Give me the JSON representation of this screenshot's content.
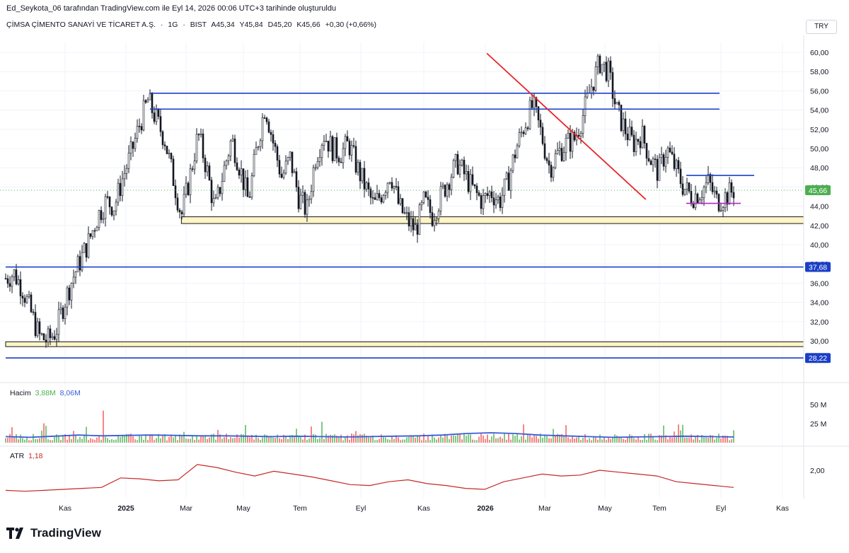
{
  "header": {
    "attribution": "Ed_Seykota_06 tarafından TradingView.com ile Eyl 14, 2026 00:06 UTC+3 tarihinde oluşturuldu"
  },
  "symbol": {
    "name": "ÇİMSA ÇİMENTO SANAYİ VE TİCARET A.Ş.",
    "interval": "1G",
    "exchange": "BIST",
    "open": "A45,34",
    "high": "Y45,84",
    "low": "D45,20",
    "close": "K45,66",
    "change": "+0,30 (+0,66%)"
  },
  "currency": "TRY",
  "chart_data": {
    "type": "candlestick",
    "x_ticks": [
      "Kas",
      "2025",
      "Mar",
      "May",
      "Tem",
      "Eyl",
      "Kas",
      "2026",
      "Mar",
      "May",
      "Tem",
      "Eyl",
      "Kas"
    ],
    "y_ticks": [
      "60,00",
      "58,00",
      "56,00",
      "54,00",
      "52,00",
      "50,00",
      "48,00",
      "46,00",
      "44,00",
      "42,00",
      "40,00",
      "38,00",
      "36,00",
      "34,00",
      "32,00",
      "30,00"
    ],
    "ylim": [
      28,
      61
    ],
    "last_price": "45,66",
    "price_path": [
      36.5,
      37.0,
      35.5,
      33.0,
      30.5,
      30.0,
      31.0,
      34.0,
      36.5,
      38.5,
      40.5,
      43.0,
      44.5,
      44.0,
      47.0,
      49.5,
      52.5,
      55.0,
      53.0,
      51.0,
      47.0,
      43.0,
      47.0,
      51.5,
      48.0,
      43.5,
      47.5,
      51.0,
      48.0,
      44.5,
      50.0,
      54.5,
      50.5,
      47.0,
      49.0,
      45.0,
      43.5,
      49.0,
      51.5,
      50.0,
      49.5,
      50.5,
      48.0,
      46.0,
      44.0,
      45.5,
      47.5,
      44.0,
      42.5,
      41.5,
      44.5,
      43.0,
      45.0,
      47.0,
      48.5,
      47.0,
      45.5,
      44.5,
      45.5,
      44.5,
      46.5,
      50.0,
      52.5,
      54.5,
      51.5,
      48.0,
      49.5,
      50.5,
      51.0,
      53.5,
      56.5,
      59.0,
      58.0,
      54.0,
      52.0,
      50.5,
      51.5,
      49.0,
      47.5,
      50.0,
      48.0,
      46.0,
      45.0,
      45.5,
      46.5,
      44.5,
      45.0,
      45.66
    ],
    "horizontal_levels": [
      {
        "price": 55.75,
        "color": "#1a3fc7",
        "from": "Ocak 2025",
        "to": "Haz 2026"
      },
      {
        "price": 54.1,
        "color": "#1a3fc7",
        "from": "Ocak 2025",
        "to": "Haz 2026"
      },
      {
        "price": 37.68,
        "color": "#1a3fc7",
        "label": "37,68",
        "full_width": true
      },
      {
        "price": 28.22,
        "color": "#1a3fc7",
        "label": "28,22",
        "full_width": true
      },
      {
        "price": 47.2,
        "color": "#1a3fc7",
        "from": "Tem 2026",
        "to": "Eyl 2026"
      },
      {
        "price": 44.3,
        "color": "#b526c9",
        "from": "Tem 2026",
        "to": "Eyl 2026"
      }
    ],
    "zones": [
      {
        "from_price": 42.2,
        "to_price": 42.9,
        "fill": "#fff5c4"
      },
      {
        "from_price": 29.4,
        "to_price": 29.9,
        "fill": "#fff5c4"
      }
    ],
    "trendline": {
      "color": "#e8262a",
      "from": [
        57.5,
        59.9
      ],
      "to": [
        76.5,
        44.7
      ]
    },
    "volume": {
      "label": "Hacim",
      "value_1": "3,88M",
      "value_2": "8,06M",
      "y_ticks": [
        "50 M",
        "25 M"
      ],
      "up_color": "#4caf50",
      "down_color": "#ef5350",
      "ma_color": "#3a5bd9"
    },
    "atr": {
      "label": "ATR",
      "value": "1,18",
      "y_ticks": [
        "2,00"
      ],
      "color": "#c62828",
      "path": [
        0.95,
        0.9,
        0.95,
        1.0,
        1.05,
        1.1,
        1.6,
        1.55,
        1.45,
        1.5,
        2.3,
        2.15,
        1.9,
        1.7,
        1.95,
        1.8,
        1.65,
        1.45,
        1.25,
        1.2,
        1.4,
        1.5,
        1.3,
        1.2,
        1.05,
        1.0,
        1.4,
        1.6,
        1.8,
        1.7,
        1.75,
        2.0,
        1.9,
        1.8,
        1.7,
        1.4,
        1.3,
        1.2,
        1.1
      ]
    }
  },
  "brand": {
    "logo_text": "TradingView"
  }
}
